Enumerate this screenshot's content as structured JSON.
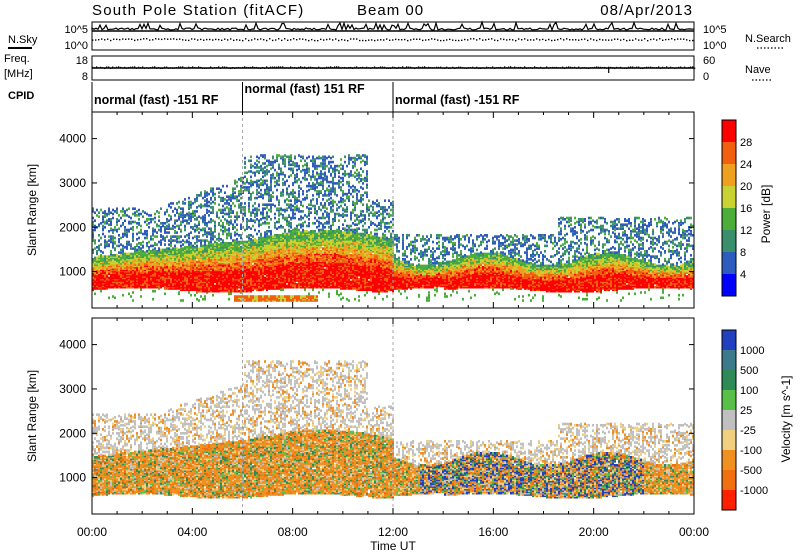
{
  "header": {
    "title": "South Pole Station (fitACF)",
    "beam": "Beam 00",
    "date": "08/Apr/2013"
  },
  "strips": {
    "nsky": {
      "label": "N.Sky",
      "tick_top": "10^5",
      "tick_bottom": "10^0"
    },
    "nsearch": {
      "label": "N.Search",
      "tick_top": "10^5",
      "tick_bottom": "10^0"
    },
    "freq": {
      "label_line1": "Freq.",
      "label_line2": "[MHz]",
      "tick_top": "18",
      "tick_bottom": "8"
    },
    "nave": {
      "label": "Nave",
      "tick_top": "60",
      "tick_bottom": "0"
    },
    "cpid": {
      "label": "CPID",
      "segments": [
        {
          "text": "normal (fast) -151 RF",
          "start_hour": 0,
          "end_hour": 6
        },
        {
          "text": "normal (fast) 151 RF",
          "start_hour": 6,
          "end_hour": 12
        },
        {
          "text": "normal (fast) -151 RF",
          "start_hour": 12,
          "end_hour": 24
        }
      ]
    }
  },
  "axes": {
    "xlabel": "Time UT",
    "ylabel": "Slant Range [km]",
    "x_ticks": [
      "00:00",
      "04:00",
      "08:00",
      "12:00",
      "16:00",
      "20:00",
      "00:00"
    ],
    "y_ticks": [
      "1000",
      "2000",
      "3000",
      "4000"
    ]
  },
  "chart_data": [
    {
      "type": "heatmap",
      "name": "power",
      "xlim_hours": [
        0,
        24
      ],
      "ylim_km": [
        180,
        4600
      ],
      "y_ticks_km": [
        1000,
        2000,
        3000,
        4000
      ],
      "colorbar_label": "Power [dB]",
      "colorbar_ticks": [
        "4",
        "8",
        "12",
        "16",
        "20",
        "24",
        "28"
      ],
      "colorbar_range": [
        0,
        32
      ],
      "colorbar_colors": [
        "#0000ff",
        "#2e5cbe",
        "#3a8f6c",
        "#4cae3a",
        "#c8d232",
        "#f0a020",
        "#f06010",
        "#ff0000"
      ]
    },
    {
      "type": "heatmap",
      "name": "velocity",
      "xlim_hours": [
        0,
        24
      ],
      "ylim_km": [
        180,
        4600
      ],
      "y_ticks_km": [
        1000,
        2000,
        3000,
        4000
      ],
      "colorbar_label": "Velocity [m s^-1]",
      "colorbar_ticks": [
        "1000",
        "500",
        "100",
        "25",
        "-25",
        "-100",
        "-500",
        "-1000"
      ],
      "colorbar_colors": [
        "#2040c0",
        "#3a7a8a",
        "#2e8b57",
        "#58c048",
        "#c0c0c0",
        "#f0d080",
        "#f09020",
        "#f07010",
        "#ff2000"
      ]
    }
  ]
}
